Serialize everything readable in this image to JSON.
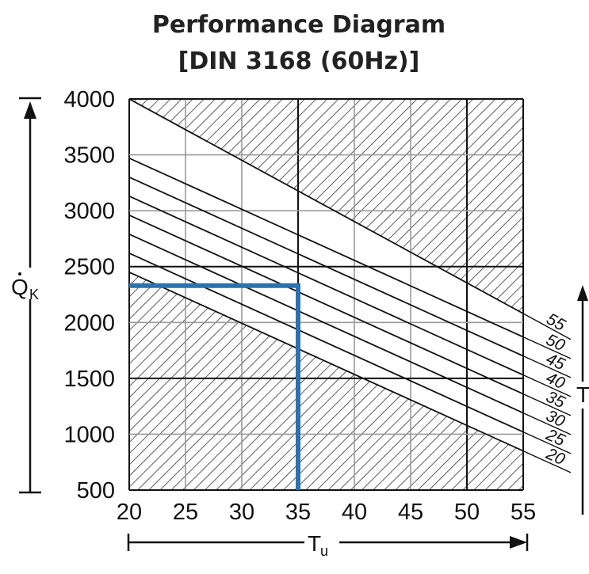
{
  "chart_data": {
    "type": "line",
    "title_line1": "Performance Diagram",
    "title_line2": "[DIN 3168 (60Hz)]",
    "xlabel": "T",
    "xlabel_sub": "u",
    "ylabel": "Q",
    "ylabel_sub": "K",
    "right_axis_label": "T",
    "xlim": [
      20,
      55
    ],
    "ylim": [
      500,
      4000
    ],
    "x_ticks": [
      "20",
      "25",
      "30",
      "35",
      "40",
      "45",
      "50",
      "55"
    ],
    "y_ticks": [
      "500",
      "1000",
      "1500",
      "2000",
      "2500",
      "3000",
      "3500",
      "4000"
    ],
    "series": [
      {
        "name": "20",
        "x": [
          20,
          55
        ],
        "y": [
          2450,
          850
        ]
      },
      {
        "name": "25",
        "x": [
          20,
          55
        ],
        "y": [
          2620,
          1020
        ]
      },
      {
        "name": "30",
        "x": [
          20,
          55
        ],
        "y": [
          2790,
          1190
        ]
      },
      {
        "name": "35",
        "x": [
          20,
          55
        ],
        "y": [
          2960,
          1360
        ]
      },
      {
        "name": "40",
        "x": [
          20,
          55
        ],
        "y": [
          3130,
          1530
        ]
      },
      {
        "name": "45",
        "x": [
          20,
          55
        ],
        "y": [
          3300,
          1700
        ]
      },
      {
        "name": "50",
        "x": [
          20,
          55
        ],
        "y": [
          3470,
          1870
        ]
      },
      {
        "name": "55",
        "x": [
          20,
          55
        ],
        "y": [
          4000,
          2080
        ]
      }
    ],
    "hatched_regions": [
      "above line 55",
      "below line 20"
    ],
    "example_reading": {
      "x": 35,
      "y": 2330
    },
    "colors": {
      "example": "#2a72b0",
      "grid_minor": "#9a9a9a",
      "grid_major": "#111111",
      "hatch": "#333333"
    },
    "grid": true
  }
}
